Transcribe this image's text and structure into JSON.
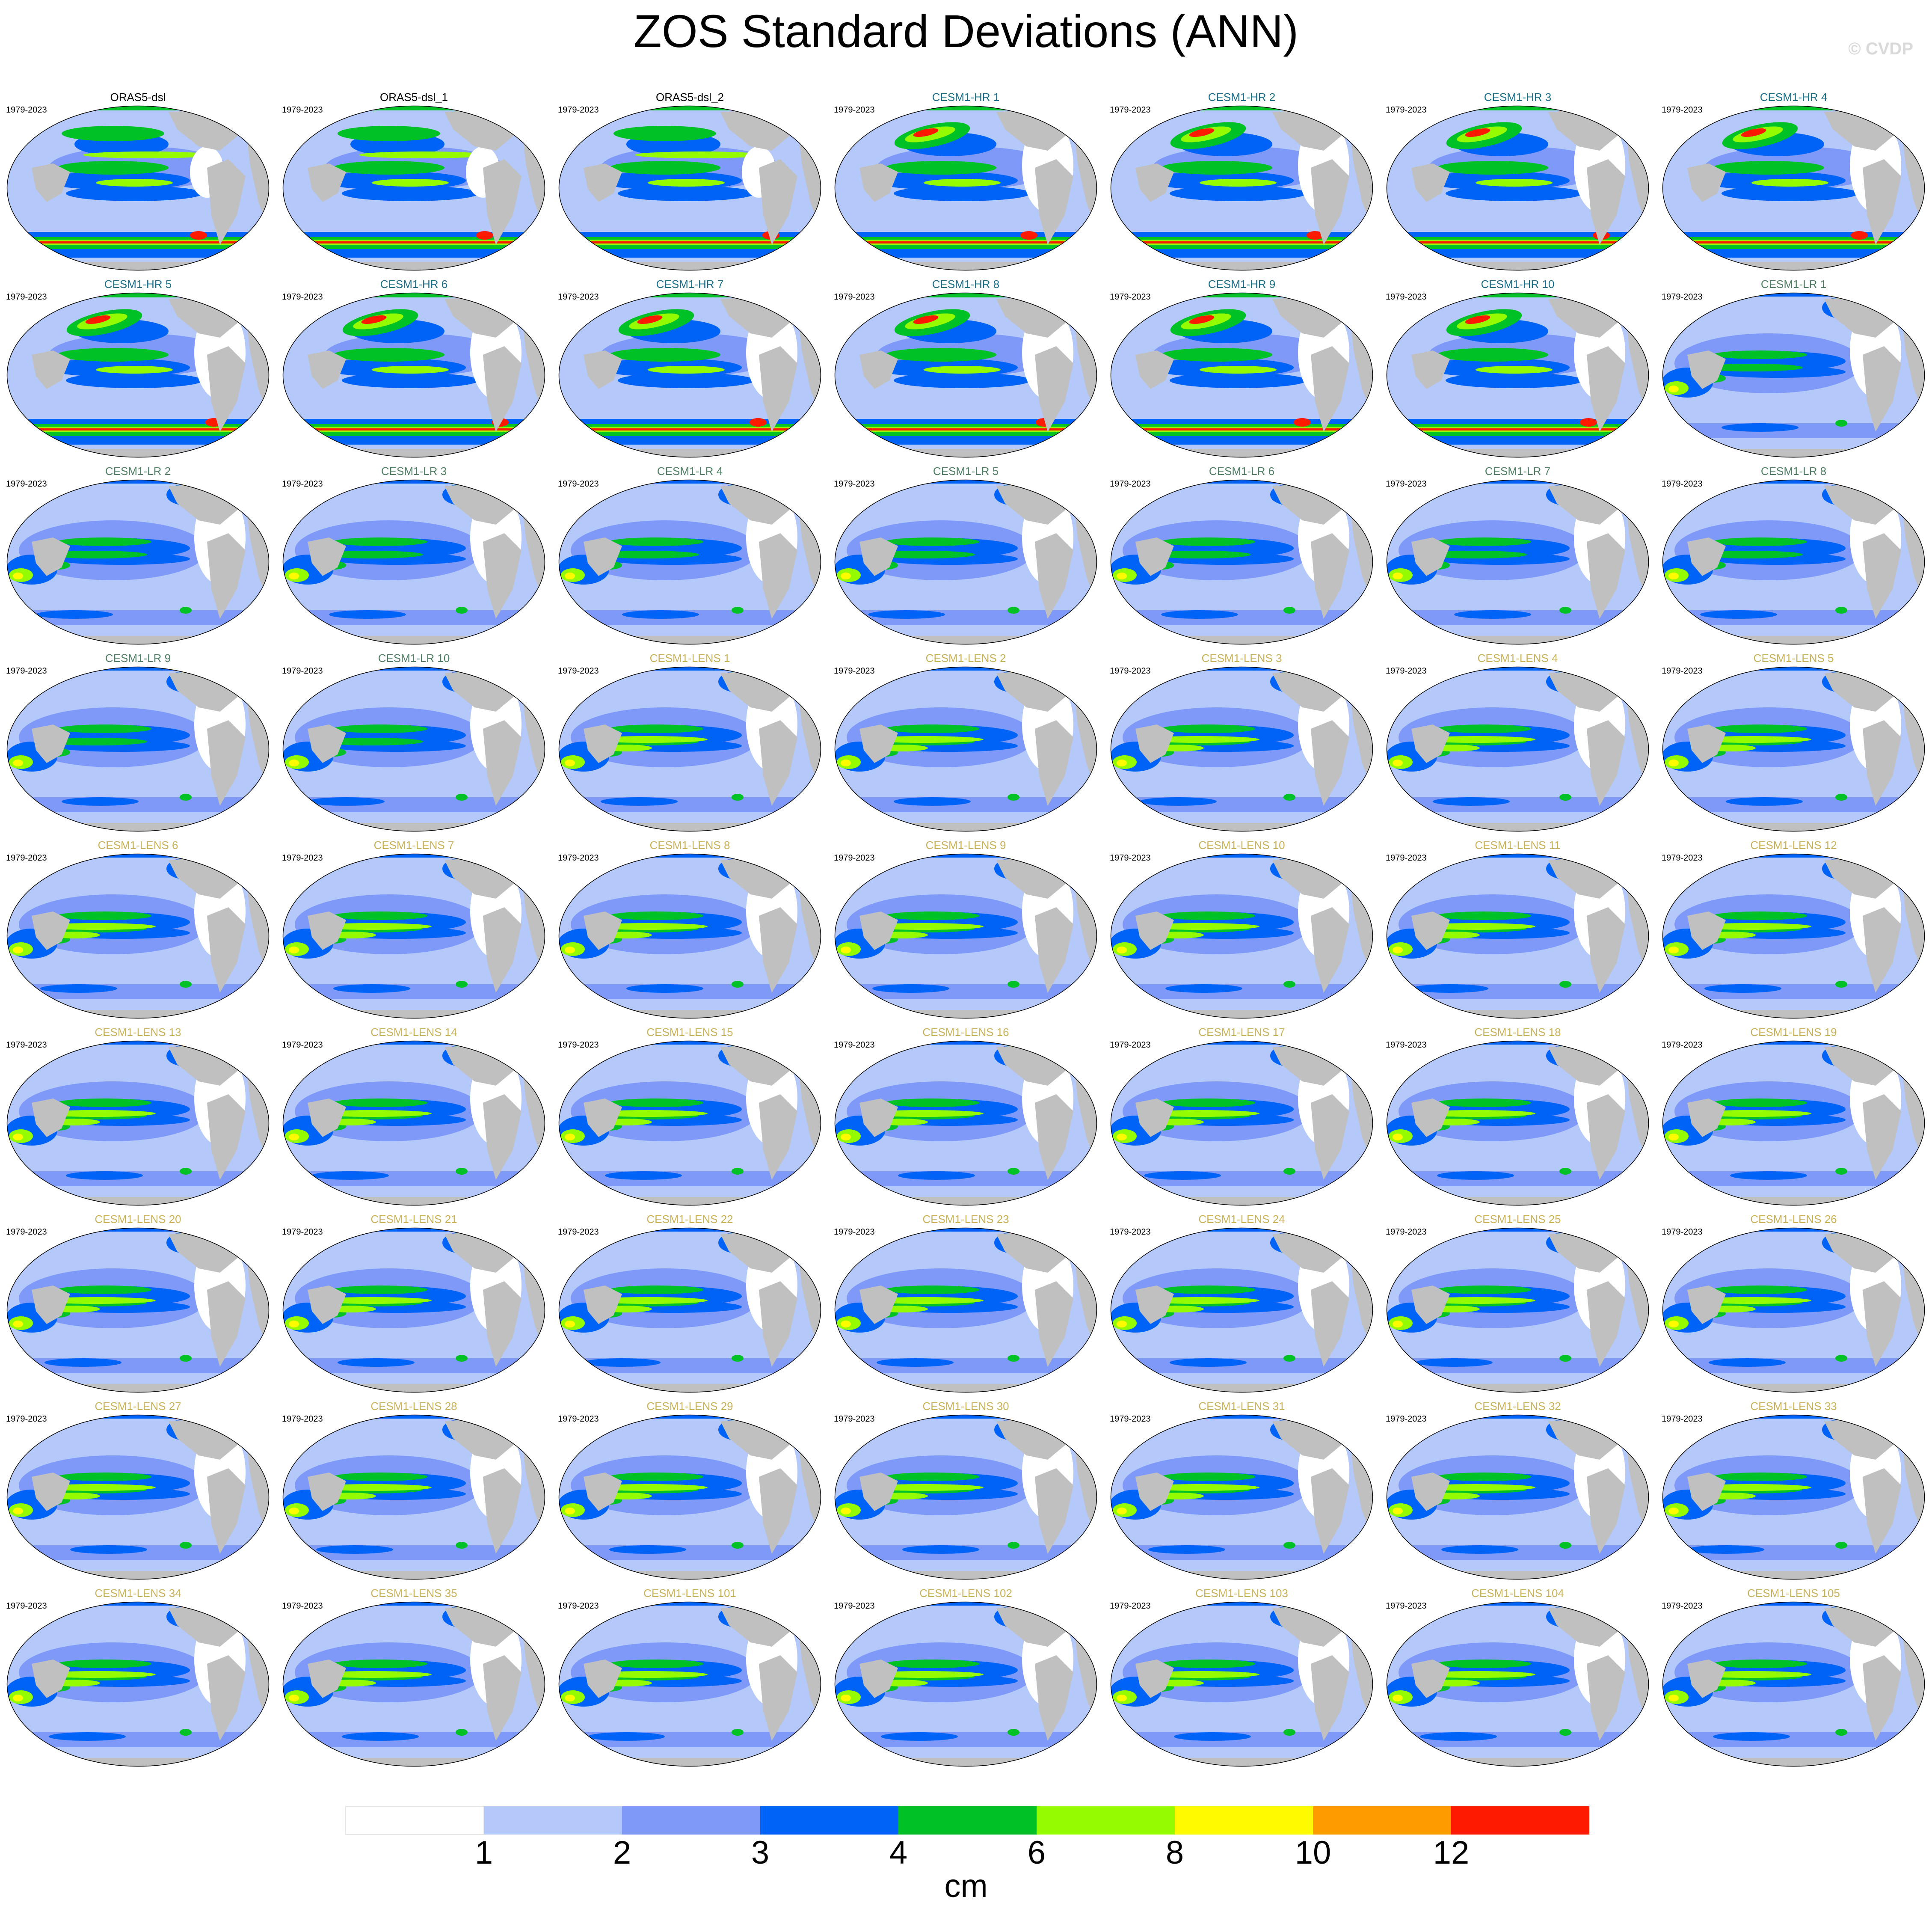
{
  "title": "ZOS Standard Deviations (ANN)",
  "watermark": "© CVDP",
  "period_label": "1979-2023",
  "panels": [
    {
      "name": "ORAS5-dsl",
      "group": "obs"
    },
    {
      "name": "ORAS5-dsl_1",
      "group": "obs"
    },
    {
      "name": "ORAS5-dsl_2",
      "group": "obs"
    },
    {
      "name": "CESM1-HR 1",
      "group": "hr"
    },
    {
      "name": "CESM1-HR 2",
      "group": "hr"
    },
    {
      "name": "CESM1-HR 3",
      "group": "hr"
    },
    {
      "name": "CESM1-HR 4",
      "group": "hr"
    },
    {
      "name": "CESM1-HR 5",
      "group": "hr"
    },
    {
      "name": "CESM1-HR 6",
      "group": "hr"
    },
    {
      "name": "CESM1-HR 7",
      "group": "hr"
    },
    {
      "name": "CESM1-HR 8",
      "group": "hr"
    },
    {
      "name": "CESM1-HR 9",
      "group": "hr"
    },
    {
      "name": "CESM1-HR 10",
      "group": "hr"
    },
    {
      "name": "CESM1-LR 1",
      "group": "lr"
    },
    {
      "name": "CESM1-LR 2",
      "group": "lr"
    },
    {
      "name": "CESM1-LR 3",
      "group": "lr"
    },
    {
      "name": "CESM1-LR 4",
      "group": "lr"
    },
    {
      "name": "CESM1-LR 5",
      "group": "lr"
    },
    {
      "name": "CESM1-LR 6",
      "group": "lr"
    },
    {
      "name": "CESM1-LR 7",
      "group": "lr"
    },
    {
      "name": "CESM1-LR 8",
      "group": "lr"
    },
    {
      "name": "CESM1-LR 9",
      "group": "lr"
    },
    {
      "name": "CESM1-LR 10",
      "group": "lr"
    },
    {
      "name": "CESM1-LENS 1",
      "group": "lens"
    },
    {
      "name": "CESM1-LENS 2",
      "group": "lens"
    },
    {
      "name": "CESM1-LENS 3",
      "group": "lens"
    },
    {
      "name": "CESM1-LENS 4",
      "group": "lens"
    },
    {
      "name": "CESM1-LENS 5",
      "group": "lens"
    },
    {
      "name": "CESM1-LENS 6",
      "group": "lens"
    },
    {
      "name": "CESM1-LENS 7",
      "group": "lens"
    },
    {
      "name": "CESM1-LENS 8",
      "group": "lens"
    },
    {
      "name": "CESM1-LENS 9",
      "group": "lens"
    },
    {
      "name": "CESM1-LENS 10",
      "group": "lens"
    },
    {
      "name": "CESM1-LENS 11",
      "group": "lens"
    },
    {
      "name": "CESM1-LENS 12",
      "group": "lens"
    },
    {
      "name": "CESM1-LENS 13",
      "group": "lens"
    },
    {
      "name": "CESM1-LENS 14",
      "group": "lens"
    },
    {
      "name": "CESM1-LENS 15",
      "group": "lens"
    },
    {
      "name": "CESM1-LENS 16",
      "group": "lens"
    },
    {
      "name": "CESM1-LENS 17",
      "group": "lens"
    },
    {
      "name": "CESM1-LENS 18",
      "group": "lens"
    },
    {
      "name": "CESM1-LENS 19",
      "group": "lens"
    },
    {
      "name": "CESM1-LENS 20",
      "group": "lens"
    },
    {
      "name": "CESM1-LENS 21",
      "group": "lens"
    },
    {
      "name": "CESM1-LENS 22",
      "group": "lens"
    },
    {
      "name": "CESM1-LENS 23",
      "group": "lens"
    },
    {
      "name": "CESM1-LENS 24",
      "group": "lens"
    },
    {
      "name": "CESM1-LENS 25",
      "group": "lens"
    },
    {
      "name": "CESM1-LENS 26",
      "group": "lens"
    },
    {
      "name": "CESM1-LENS 27",
      "group": "lens"
    },
    {
      "name": "CESM1-LENS 28",
      "group": "lens"
    },
    {
      "name": "CESM1-LENS 29",
      "group": "lens"
    },
    {
      "name": "CESM1-LENS 30",
      "group": "lens"
    },
    {
      "name": "CESM1-LENS 31",
      "group": "lens"
    },
    {
      "name": "CESM1-LENS 32",
      "group": "lens"
    },
    {
      "name": "CESM1-LENS 33",
      "group": "lens"
    },
    {
      "name": "CESM1-LENS 34",
      "group": "lens"
    },
    {
      "name": "CESM1-LENS 35",
      "group": "lens"
    },
    {
      "name": "CESM1-LENS 101",
      "group": "lens"
    },
    {
      "name": "CESM1-LENS 102",
      "group": "lens"
    },
    {
      "name": "CESM1-LENS 103",
      "group": "lens"
    },
    {
      "name": "CESM1-LENS 104",
      "group": "lens"
    },
    {
      "name": "CESM1-LENS 105",
      "group": "lens"
    }
  ],
  "group_title_colors": {
    "obs": "#000000",
    "hr": "#1a6f8a",
    "lr": "#4f7f63",
    "lens": "#c9b25a"
  },
  "land_color": "#c0c0c0",
  "colorbar": {
    "unit": "cm",
    "tick_labels": [
      "1",
      "2",
      "3",
      "4",
      "6",
      "8",
      "10",
      "12"
    ],
    "colors": [
      "#ffffff",
      "#b4c8fa",
      "#7f99f8",
      "#0063f7",
      "#00c125",
      "#95fb00",
      "#fefb00",
      "#fe9b00",
      "#fe1a00"
    ]
  }
}
